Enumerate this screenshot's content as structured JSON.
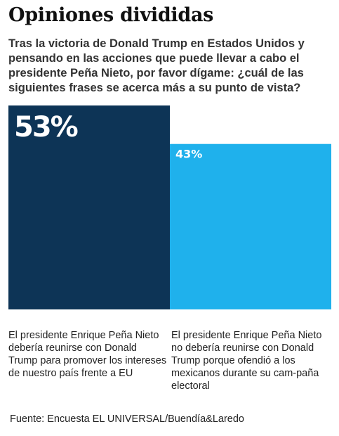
{
  "header": {
    "title": "Opiniones divididas",
    "subtitle": "Tras la victoria de Donald Trump en Estados Unidos y pensando en las acciones que puede llevar a cabo el presidente Peña Nieto, por favor dígame: ¿cuál de las siguientes frases se acerca más a su punto de vista?"
  },
  "chart_data": {
    "type": "bar",
    "categories": [
      "El presidente Enrique Peña Nieto debería reunirse con Donald Trump para promover los intereses de nuestro país frente a EU",
      "El presidente Enrique Peña Nieto no debería reunirse con Donald Trump porque ofendió a los mexicanos durante su cam-paña electoral"
    ],
    "values": [
      53,
      43
    ],
    "data_labels": [
      "53%",
      "43%"
    ],
    "unit": "%",
    "ylim": [
      0,
      53
    ],
    "grid": false,
    "legend": "none",
    "colors": [
      "#0d3456",
      "#1fb1ec"
    ]
  },
  "footer": {
    "source": "Fuente: Encuesta EL UNIVERSAL/Buendía&Laredo"
  }
}
